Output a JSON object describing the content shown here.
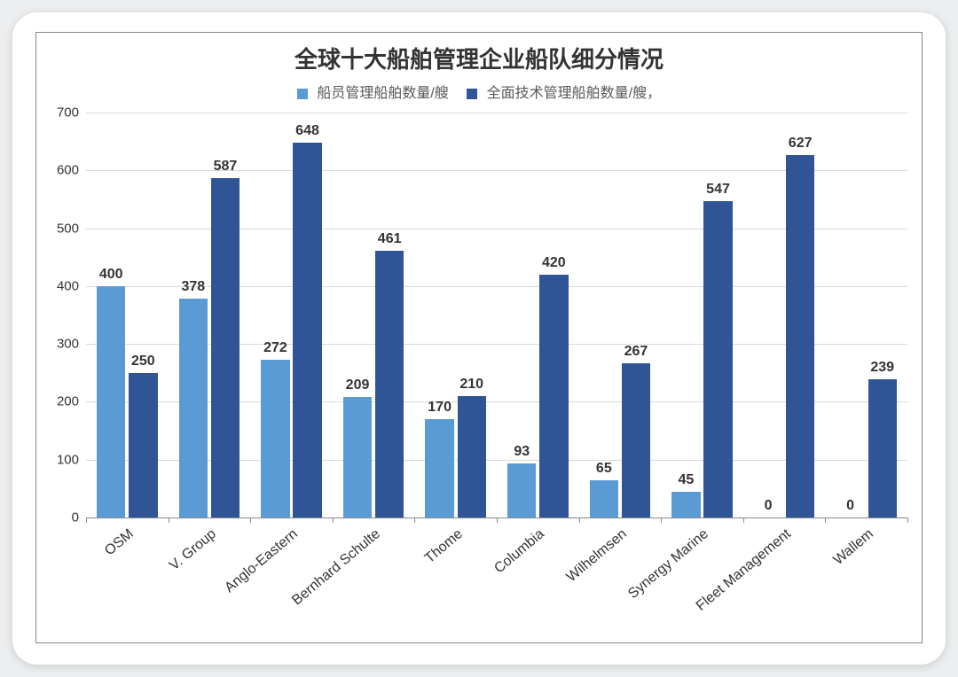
{
  "chart": {
    "type": "bar-grouped",
    "title": "全球十大船舶管理企业船队细分情况",
    "title_fontsize": 26,
    "title_color": "#333333",
    "frame_border_color": "#888888",
    "background_color": "#ffffff",
    "page_background_color": "#eceef0",
    "grid_color": "#d9d9d9",
    "axis_color": "#888888",
    "label_color": "#333333",
    "label_fontsize": 15,
    "data_label_fontsize": 16,
    "data_label_font_weight": "bold",
    "x_label_fontsize": 16,
    "x_label_rotation_deg": -40,
    "ylim": [
      0,
      700
    ],
    "ytick_step": 100,
    "yticks": [
      0,
      100,
      200,
      300,
      400,
      500,
      600,
      700
    ],
    "categories": [
      "OSM",
      "V. Group",
      "Anglo-Eastern",
      "Bernhard Schulte",
      "Thome",
      "Columbia",
      "Wilhelmsen",
      "Synergy Marine",
      "Fleet Management",
      "Wallem"
    ],
    "series": [
      {
        "key": "crew_mgmt",
        "name": "船员管理船舶数量/艘",
        "color": "#5b9bd5",
        "values": [
          400,
          378,
          272,
          209,
          170,
          93,
          65,
          45,
          0,
          0
        ]
      },
      {
        "key": "full_tech_mgmt",
        "name": "全面技术管理船舶数量/艘，",
        "color": "#2f5597",
        "values": [
          250,
          587,
          648,
          461,
          210,
          420,
          267,
          547,
          627,
          239
        ]
      }
    ],
    "bar": {
      "group_gap_ratio": 0.22,
      "bar_gap_ratio": 0.04
    }
  }
}
